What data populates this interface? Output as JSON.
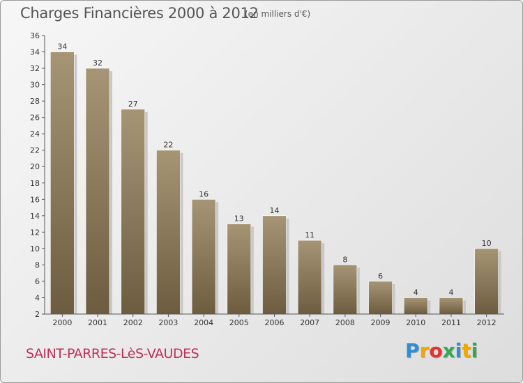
{
  "header": {
    "title": "Charges Financières 2000 à 2012",
    "subtitle": "(en milliers d'€)"
  },
  "footer": {
    "town": "SAINT-PARRES-LèS-VAUDES",
    "brand": [
      "P",
      "r",
      "o",
      "x",
      "i",
      "t",
      "i"
    ],
    "brand_colors": [
      "#2f8fd6",
      "#f2a800",
      "#e2352e",
      "#34a853",
      "#2f8fd6",
      "#f2a800",
      "#34a853"
    ]
  },
  "colors": {
    "bar_top": "#a69575",
    "bar_bottom": "#6d5c3f",
    "shadow": "#c8c8c8",
    "axis": "#555555"
  },
  "chart_data": {
    "type": "bar",
    "categories": [
      "2000",
      "2001",
      "2002",
      "2003",
      "2004",
      "2005",
      "2006",
      "2007",
      "2008",
      "2009",
      "2010",
      "2011",
      "2012"
    ],
    "values": [
      34,
      32,
      27,
      22,
      16,
      13,
      14,
      11,
      8,
      6,
      4,
      4,
      10
    ],
    "title": "Charges Financières 2000 à 2012",
    "subtitle": "(en milliers d'€)",
    "xlabel": "",
    "ylabel": "",
    "ylim": [
      2,
      36
    ],
    "yticks": [
      2,
      4,
      6,
      8,
      10,
      12,
      14,
      16,
      18,
      20,
      22,
      24,
      26,
      28,
      30,
      32,
      34,
      36
    ],
    "grid": false,
    "data_labels": true
  }
}
